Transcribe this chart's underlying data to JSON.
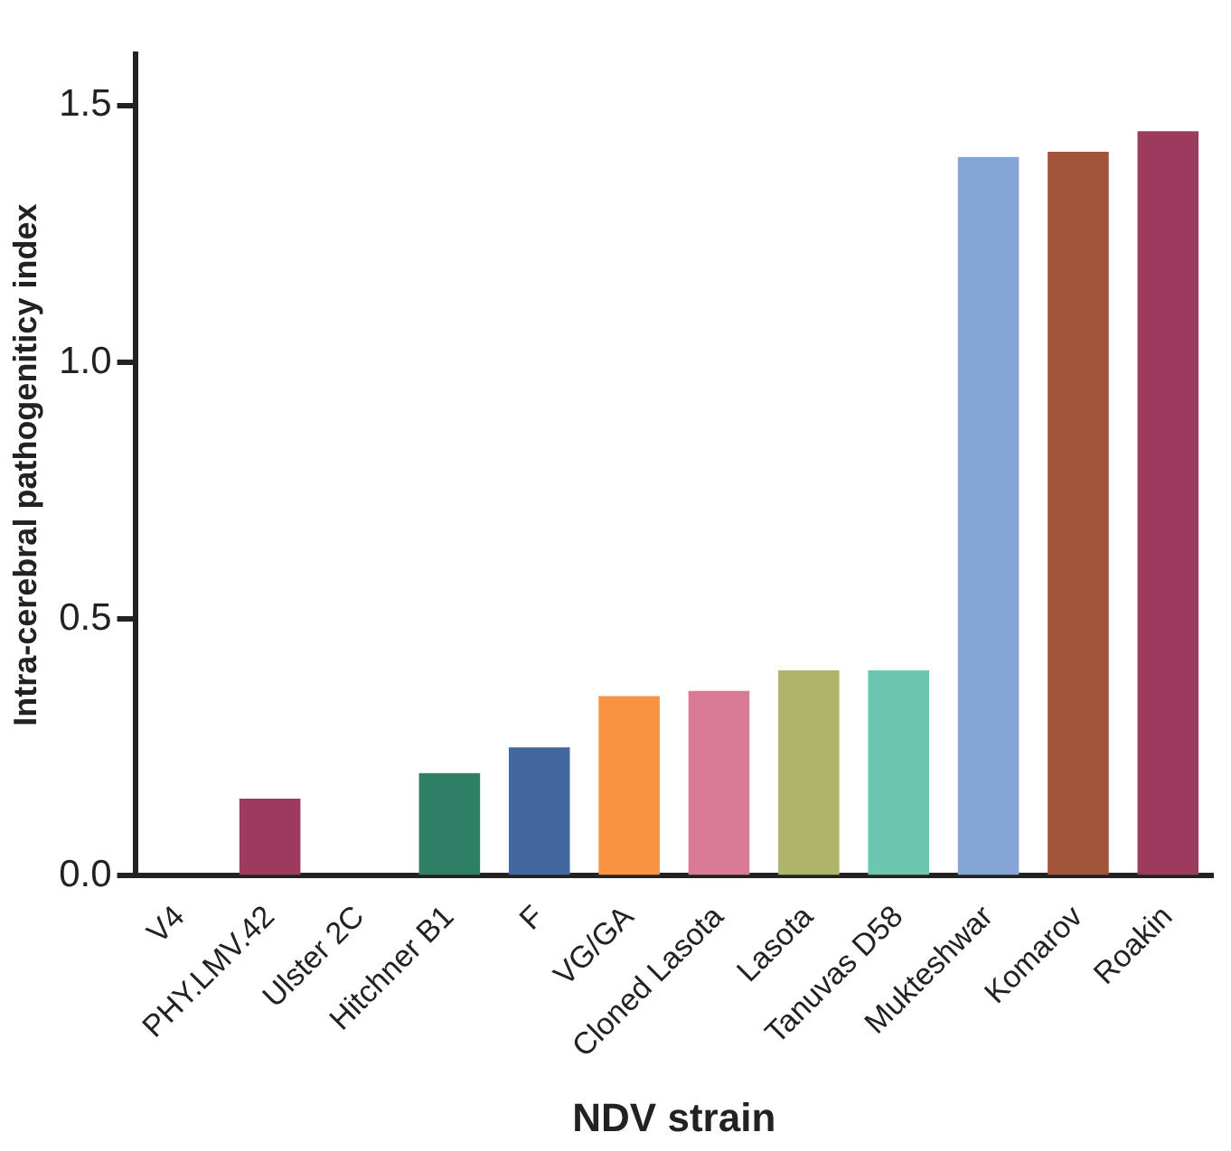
{
  "chart_data": {
    "type": "bar",
    "xlabel": "NDV strain",
    "ylabel": "Intra-cerebral pathogeniticy index",
    "categories": [
      "V4",
      "PHY.LMV.42",
      "Ulster 2C",
      "Hitchner B1",
      "F",
      "VG/GA",
      "Cloned Lasota",
      "Lasota",
      "Tanuvas D58",
      "Mukteshwar",
      "Komarov",
      "Roakin"
    ],
    "values": [
      0,
      0.15,
      0,
      0.2,
      0.25,
      0.35,
      0.36,
      0.4,
      0.4,
      1.4,
      1.41,
      1.45
    ],
    "colors": [
      "#9e3a5e",
      "#9e3a5e",
      "#9e3a5e",
      "#2e7f66",
      "#43689f",
      "#f99241",
      "#d97a96",
      "#aeb56b",
      "#6cc6b0",
      "#84a5d6",
      "#a2553a",
      "#9e3a5e"
    ],
    "ylim": [
      0,
      1.6
    ],
    "yticks": [
      {
        "value": 0,
        "label": "0.0"
      },
      {
        "value": 0.5,
        "label": "0.5"
      },
      {
        "value": 1,
        "label": "1.0"
      },
      {
        "value": 1.5,
        "label": "1.5"
      }
    ],
    "grid": false,
    "legend": false
  }
}
